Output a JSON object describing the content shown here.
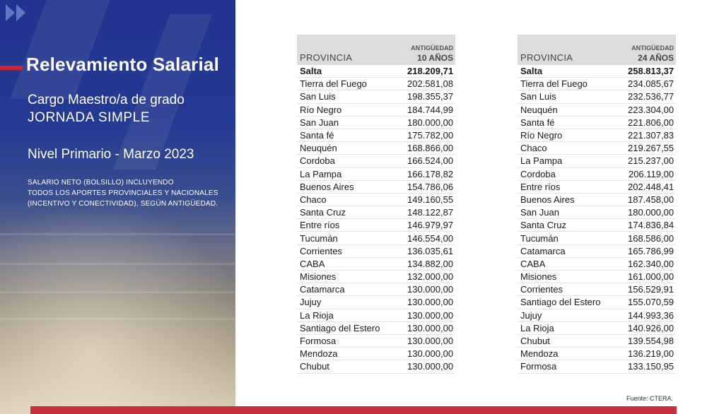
{
  "title": "Relevamiento Salarial",
  "subtitle_line1": "Cargo Maestro/a de grado",
  "subtitle_line2": "JORNADA SIMPLE",
  "level": "Nivel Primario - Marzo 2023",
  "note": {
    "line1": "SALARIO NETO (BOLSILLO) INCLUYENDO",
    "line2": "TODOS LOS APORTES PROVINCIALES Y NACIONALES",
    "line3": "(INCENTIVO Y CONECTIVIDAD), SEGÚN ANTIGÜEDAD."
  },
  "tables": [
    {
      "col_province": "PROVINCIA",
      "col_header_top": "ANTIGÜEDAD",
      "col_header_bottom": "10 AÑOS",
      "rows": [
        {
          "province": "Salta",
          "value": "218.209,71"
        },
        {
          "province": "Tierra del Fuego",
          "value": "202.581,08"
        },
        {
          "province": "San Luis",
          "value": "198.355,37"
        },
        {
          "province": "Río Negro",
          "value": "184.744,99"
        },
        {
          "province": "San Juan",
          "value": "180.000,00"
        },
        {
          "province": "Santa fé",
          "value": "175.782,00"
        },
        {
          "province": "Neuquén",
          "value": "168.866,00"
        },
        {
          "province": "Cordoba",
          "value": "166.524,00"
        },
        {
          "province": "La Pampa",
          "value": "166.178,82"
        },
        {
          "province": "Buenos Aires",
          "value": "154.786,06"
        },
        {
          "province": "Chaco",
          "value": "149.160,55"
        },
        {
          "province": "Santa Cruz",
          "value": "148.122,87"
        },
        {
          "province": "Entre ríos",
          "value": "146.979,97"
        },
        {
          "province": "Tucumán",
          "value": "146.554,00"
        },
        {
          "province": "Corrientes",
          "value": "136.035,61"
        },
        {
          "province": "CABA",
          "value": "134.882,00"
        },
        {
          "province": "Misiones",
          "value": "132.000,00"
        },
        {
          "province": "Catamarca",
          "value": "130.000,00"
        },
        {
          "province": "Jujuy",
          "value": "130.000,00"
        },
        {
          "province": "La Rioja",
          "value": "130.000,00"
        },
        {
          "province": "Santiago del Estero",
          "value": "130.000,00"
        },
        {
          "province": "Formosa",
          "value": "130.000,00"
        },
        {
          "province": "Mendoza",
          "value": "130.000,00"
        },
        {
          "province": "Chubut",
          "value": "130.000,00"
        }
      ]
    },
    {
      "col_province": "PROVINCIA",
      "col_header_top": "ANTIGÜEDAD",
      "col_header_bottom": "24 AÑOS",
      "rows": [
        {
          "province": "Salta",
          "value": "258.813,37"
        },
        {
          "province": "Tierra del Fuego",
          "value": "234.085,67"
        },
        {
          "province": "San Luis",
          "value": "232.536,77"
        },
        {
          "province": "Neuquén",
          "value": "223.304,00"
        },
        {
          "province": "Santa fé",
          "value": "221.806,00"
        },
        {
          "province": "Río Negro",
          "value": "221.307,83"
        },
        {
          "province": "Chaco",
          "value": "219.267,55"
        },
        {
          "province": "La Pampa",
          "value": "215.237,00"
        },
        {
          "province": "Cordoba",
          "value": "206.119,00"
        },
        {
          "province": "Entre ríos",
          "value": "202.448,41"
        },
        {
          "province": "Buenos Aires",
          "value": "187.458,00"
        },
        {
          "province": "San Juan",
          "value": "180.000,00"
        },
        {
          "province": "Santa Cruz",
          "value": "174.836,84"
        },
        {
          "province": "Tucumán",
          "value": "168.586,00"
        },
        {
          "province": "Catamarca",
          "value": "165.786,99"
        },
        {
          "province": "CABA",
          "value": "162.340,00"
        },
        {
          "province": "Misiones",
          "value": "161.000,00"
        },
        {
          "province": "Corrientes",
          "value": "156.529,91"
        },
        {
          "province": "Santiago del Estero",
          "value": "155.070,59"
        },
        {
          "province": "Jujuy",
          "value": "144.993,36"
        },
        {
          "province": "La Rioja",
          "value": "140.926,00"
        },
        {
          "province": "Chubut",
          "value": "139.554,98"
        },
        {
          "province": "Mendoza",
          "value": "136.219,00"
        },
        {
          "province": "Formosa",
          "value": "133.150,95"
        }
      ]
    }
  ],
  "source": "Fuente: CTERA.",
  "colors": {
    "panel_blue": "#22338f",
    "accent_red": "#d02433",
    "header_gray": "#dcdcdc"
  }
}
